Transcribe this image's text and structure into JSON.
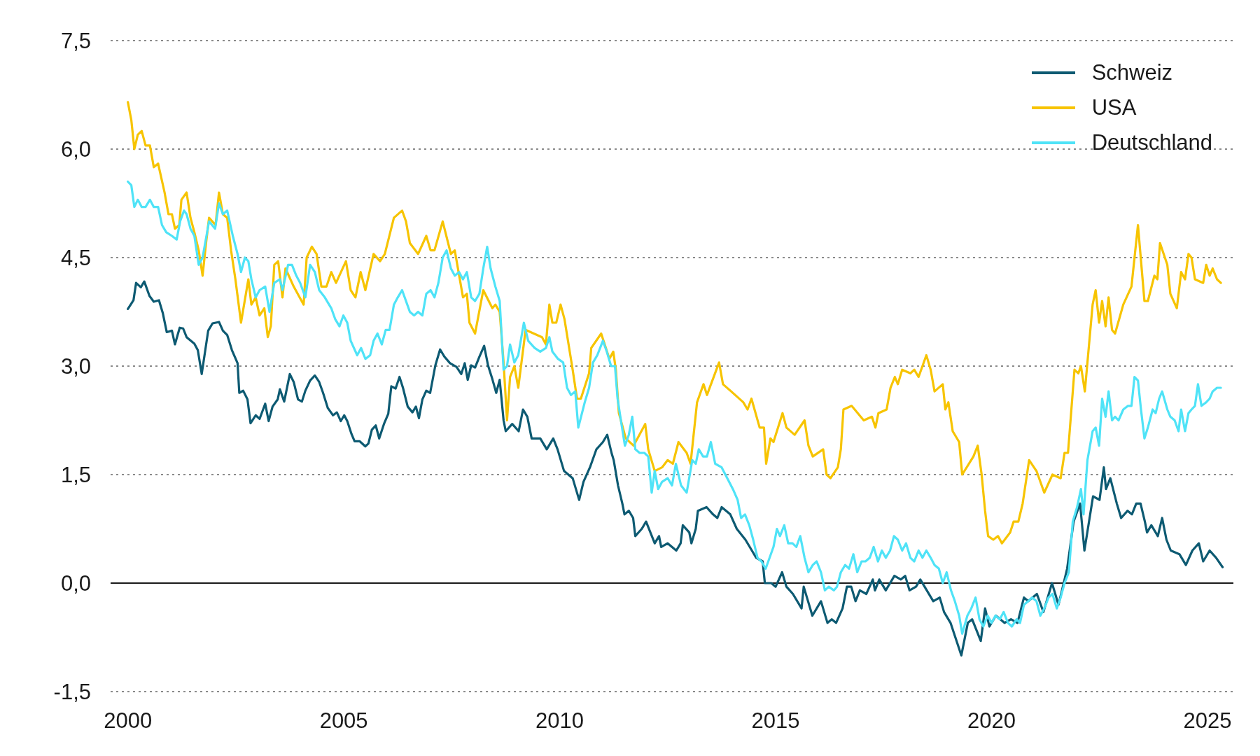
{
  "chart_data": {
    "type": "line",
    "xlim": [
      1999.6,
      2025.6
    ],
    "xticks": [
      2000,
      2005,
      2010,
      2015,
      2020,
      2025
    ],
    "ylim": [
      -1.5,
      7.5
    ],
    "yticks": [
      {
        "value": -1.5,
        "label": "-1,5"
      },
      {
        "value": 0,
        "label": "0,0"
      },
      {
        "value": 1.5,
        "label": "1,5"
      },
      {
        "value": 3,
        "label": "3,0"
      },
      {
        "value": 4.5,
        "label": "4,5"
      },
      {
        "value": 6,
        "label": "6,0"
      },
      {
        "value": 7.5,
        "label": "7,5"
      }
    ],
    "grid": "y",
    "legend": "top right",
    "ref_lines": [
      {
        "axis": "y",
        "value": 0,
        "color": "#1a1a1a"
      }
    ],
    "series": [
      {
        "name": "Schweiz",
        "color": "#0d5a72",
        "x": [
          2000.0,
          2000.13,
          2000.19,
          2000.3,
          2000.38,
          2000.5,
          2000.6,
          2000.72,
          2000.81,
          2000.9,
          2001.02,
          2001.09,
          2001.2,
          2001.28,
          2001.36,
          2001.54,
          2001.62,
          2001.71,
          2001.86,
          2001.96,
          2002.11,
          2002.2,
          2002.3,
          2002.41,
          2002.54,
          2002.58,
          2002.67,
          2002.77,
          2002.84,
          2002.96,
          2003.05,
          2003.18,
          2003.26,
          2003.35,
          2003.47,
          2003.52,
          2003.62,
          2003.75,
          2003.84,
          2003.94,
          2004.03,
          2004.11,
          2004.22,
          2004.33,
          2004.43,
          2004.52,
          2004.63,
          2004.75,
          2004.84,
          2004.93,
          2005.01,
          2005.08,
          2005.18,
          2005.25,
          2005.37,
          2005.5,
          2005.57,
          2005.65,
          2005.74,
          2005.82,
          2005.93,
          2006.03,
          2006.1,
          2006.2,
          2006.29,
          2006.37,
          2006.48,
          2006.59,
          2006.67,
          2006.74,
          2006.82,
          2006.91,
          2007.0,
          2007.12,
          2007.23,
          2007.33,
          2007.46,
          2007.61,
          2007.72,
          2007.8,
          2007.87,
          2007.95,
          2008.04,
          2008.14,
          2008.25,
          2008.34,
          2008.44,
          2008.53,
          2008.61,
          2008.7,
          2008.75,
          2008.9,
          2009.05,
          2009.15,
          2009.25,
          2009.35,
          2009.55,
          2009.7,
          2009.85,
          2009.95,
          2010.1,
          2010.3,
          2010.45,
          2010.55,
          2010.7,
          2010.85,
          2011.0,
          2011.1,
          2011.2,
          2011.25,
          2011.35,
          2011.45,
          2011.5,
          2011.6,
          2011.7,
          2011.75,
          2011.9,
          2012.0,
          2012.2,
          2012.3,
          2012.35,
          2012.5,
          2012.7,
          2012.8,
          2012.85,
          2013.0,
          2013.05,
          2013.15,
          2013.2,
          2013.4,
          2013.55,
          2013.65,
          2013.75,
          2013.95,
          2014.1,
          2014.3,
          2014.45,
          2014.55,
          2014.7,
          2014.75,
          2014.9,
          2015.0,
          2015.15,
          2015.25,
          2015.4,
          2015.6,
          2015.65,
          2015.85,
          2016.05,
          2016.2,
          2016.3,
          2016.4,
          2016.55,
          2016.65,
          2016.75,
          2016.85,
          2016.95,
          2017.1,
          2017.25,
          2017.3,
          2017.4,
          2017.55,
          2017.75,
          2017.9,
          2018.0,
          2018.1,
          2018.25,
          2018.35,
          2018.65,
          2018.8,
          2018.9,
          2019.05,
          2019.3,
          2019.45,
          2019.55,
          2019.75,
          2019.85,
          2019.95,
          2020.1,
          2020.3,
          2020.45,
          2020.6,
          2020.75,
          2020.85,
          2021.05,
          2021.2,
          2021.4,
          2021.55,
          2021.75,
          2021.9,
          2022.05,
          2022.15,
          2022.35,
          2022.5,
          2022.6,
          2022.65,
          2022.75,
          2022.9,
          2023.0,
          2023.15,
          2023.25,
          2023.35,
          2023.45,
          2023.55,
          2023.6,
          2023.7,
          2023.85,
          2023.95,
          2024.05,
          2024.15,
          2024.35,
          2024.5,
          2024.65,
          2024.8,
          2024.9,
          2025.05,
          2025.2,
          2025.35
        ],
        "values": [
          3.79,
          3.91,
          4.15,
          4.09,
          4.17,
          3.97,
          3.89,
          3.91,
          3.73,
          3.47,
          3.49,
          3.3,
          3.53,
          3.52,
          3.4,
          3.31,
          3.22,
          2.89,
          3.49,
          3.59,
          3.61,
          3.49,
          3.43,
          3.22,
          3.04,
          2.63,
          2.66,
          2.54,
          2.21,
          2.32,
          2.27,
          2.48,
          2.24,
          2.44,
          2.54,
          2.68,
          2.51,
          2.89,
          2.78,
          2.54,
          2.51,
          2.66,
          2.8,
          2.87,
          2.78,
          2.63,
          2.42,
          2.32,
          2.36,
          2.24,
          2.32,
          2.24,
          2.06,
          1.96,
          1.96,
          1.89,
          1.93,
          2.12,
          2.18,
          2.0,
          2.2,
          2.34,
          2.72,
          2.69,
          2.85,
          2.7,
          2.44,
          2.36,
          2.44,
          2.28,
          2.54,
          2.66,
          2.63,
          3.01,
          3.23,
          3.13,
          3.04,
          2.99,
          2.89,
          3.04,
          2.81,
          3.01,
          2.98,
          3.13,
          3.28,
          3.01,
          2.82,
          2.63,
          2.81,
          2.25,
          2.1,
          2.2,
          2.1,
          2.4,
          2.3,
          2.0,
          2.0,
          1.85,
          2.0,
          1.85,
          1.55,
          1.45,
          1.15,
          1.4,
          1.6,
          1.85,
          1.95,
          2.05,
          1.8,
          1.7,
          1.35,
          1.1,
          0.95,
          1.0,
          0.9,
          0.65,
          0.75,
          0.85,
          0.55,
          0.65,
          0.5,
          0.55,
          0.45,
          0.55,
          0.8,
          0.7,
          0.55,
          0.75,
          1.0,
          1.05,
          0.95,
          0.9,
          1.05,
          0.95,
          0.75,
          0.6,
          0.45,
          0.35,
          0.3,
          0.0,
          0.0,
          -0.05,
          0.15,
          -0.05,
          -0.15,
          -0.35,
          -0.05,
          -0.45,
          -0.25,
          -0.55,
          -0.5,
          -0.55,
          -0.35,
          -0.05,
          -0.05,
          -0.25,
          -0.1,
          -0.15,
          0.05,
          -0.1,
          0.05,
          -0.1,
          0.1,
          0.05,
          0.1,
          -0.1,
          -0.05,
          0.05,
          -0.25,
          -0.2,
          -0.4,
          -0.55,
          -1.0,
          -0.55,
          -0.5,
          -0.8,
          -0.35,
          -0.6,
          -0.45,
          -0.55,
          -0.5,
          -0.55,
          -0.2,
          -0.25,
          -0.15,
          -0.4,
          0.0,
          -0.3,
          0.2,
          0.85,
          1.1,
          0.45,
          1.2,
          1.15,
          1.6,
          1.3,
          1.45,
          1.1,
          0.9,
          1.0,
          0.95,
          1.1,
          1.1,
          0.85,
          0.7,
          0.8,
          0.65,
          0.9,
          0.6,
          0.45,
          0.4,
          0.25,
          0.45,
          0.55,
          0.3,
          0.45,
          0.35,
          0.22
        ]
      },
      {
        "name": "USA",
        "color": "#f7c400",
        "x": [
          2000.0,
          2000.08,
          2000.15,
          2000.23,
          2000.32,
          2000.41,
          2000.51,
          2000.6,
          2000.7,
          2000.85,
          2000.94,
          2001.02,
          2001.09,
          2001.19,
          2001.24,
          2001.36,
          2001.45,
          2001.54,
          2001.64,
          2001.73,
          2001.81,
          2001.88,
          2002.03,
          2002.11,
          2002.2,
          2002.3,
          2002.39,
          2002.49,
          2002.62,
          2002.79,
          2002.86,
          2002.96,
          2003.05,
          2003.16,
          2003.24,
          2003.31,
          2003.39,
          2003.48,
          2003.58,
          2003.65,
          2003.84,
          2004.07,
          2004.14,
          2004.26,
          2004.37,
          2004.48,
          2004.6,
          2004.71,
          2004.82,
          2005.05,
          2005.16,
          2005.27,
          2005.39,
          2005.5,
          2005.69,
          2005.84,
          2005.95,
          2006.16,
          2006.35,
          2006.44,
          2006.53,
          2006.72,
          2006.91,
          2007.01,
          2007.1,
          2007.29,
          2007.48,
          2007.57,
          2007.76,
          2007.85,
          2007.91,
          2008.04,
          2008.23,
          2008.44,
          2008.51,
          2008.61,
          2008.7,
          2008.78,
          2008.85,
          2008.95,
          2009.04,
          2009.21,
          2009.4,
          2009.59,
          2009.68,
          2009.76,
          2009.83,
          2009.92,
          2010.02,
          2010.11,
          2010.3,
          2010.4,
          2010.49,
          2010.68,
          2010.73,
          2010.96,
          2011.15,
          2011.24,
          2011.3,
          2011.37,
          2011.53,
          2011.71,
          2011.98,
          2012.05,
          2012.2,
          2012.37,
          2012.5,
          2012.62,
          2012.75,
          2012.94,
          2013.03,
          2013.18,
          2013.33,
          2013.41,
          2013.69,
          2013.78,
          2013.97,
          2014.25,
          2014.35,
          2014.44,
          2014.63,
          2014.73,
          2014.78,
          2014.88,
          2014.95,
          2015.16,
          2015.25,
          2015.44,
          2015.67,
          2015.76,
          2015.86,
          2016.1,
          2016.18,
          2016.27,
          2016.44,
          2016.51,
          2016.57,
          2016.76,
          2017.04,
          2017.23,
          2017.31,
          2017.38,
          2017.57,
          2017.66,
          2017.76,
          2017.83,
          2017.93,
          2018.12,
          2018.21,
          2018.31,
          2018.49,
          2018.59,
          2018.68,
          2018.87,
          2018.93,
          2019.0,
          2019.1,
          2019.25,
          2019.32,
          2019.58,
          2019.68,
          2019.77,
          2019.85,
          2019.92,
          2020.04,
          2020.15,
          2020.24,
          2020.43,
          2020.51,
          2020.62,
          2020.72,
          2020.87,
          2021.04,
          2021.22,
          2021.41,
          2021.6,
          2021.69,
          2021.77,
          2021.92,
          2022.01,
          2022.07,
          2022.16,
          2022.34,
          2022.41,
          2022.49,
          2022.56,
          2022.64,
          2022.71,
          2022.79,
          2022.86,
          2023.05,
          2023.24,
          2023.39,
          2023.54,
          2023.62,
          2023.77,
          2023.84,
          2023.9,
          2024.07,
          2024.14,
          2024.29,
          2024.39,
          2024.48,
          2024.56,
          2024.63,
          2024.71,
          2024.9,
          2024.97,
          2025.05,
          2025.12,
          2025.22,
          2025.31
        ],
        "values": [
          6.65,
          6.4,
          6.0,
          6.2,
          6.25,
          6.05,
          6.05,
          5.75,
          5.8,
          5.4,
          5.1,
          5.1,
          4.9,
          4.95,
          5.3,
          5.4,
          5.05,
          4.85,
          4.6,
          4.25,
          4.7,
          5.05,
          4.95,
          5.4,
          5.1,
          5.05,
          4.6,
          4.2,
          3.6,
          4.2,
          3.85,
          3.95,
          3.7,
          3.8,
          3.4,
          3.55,
          4.4,
          4.45,
          3.95,
          4.35,
          4.1,
          3.85,
          4.5,
          4.65,
          4.55,
          4.1,
          4.1,
          4.3,
          4.15,
          4.45,
          4.05,
          3.95,
          4.3,
          4.05,
          4.55,
          4.45,
          4.55,
          5.05,
          5.15,
          5.0,
          4.7,
          4.55,
          4.8,
          4.6,
          4.6,
          5.0,
          4.55,
          4.6,
          3.95,
          4.0,
          3.6,
          3.45,
          4.05,
          3.8,
          3.85,
          3.75,
          3.05,
          2.25,
          2.85,
          3.0,
          2.7,
          3.5,
          3.45,
          3.4,
          3.3,
          3.85,
          3.6,
          3.6,
          3.85,
          3.65,
          2.95,
          2.55,
          2.55,
          2.9,
          3.25,
          3.45,
          3.1,
          3.2,
          2.95,
          2.35,
          2.0,
          1.9,
          2.2,
          1.85,
          1.55,
          1.6,
          1.7,
          1.65,
          1.95,
          1.8,
          1.65,
          2.5,
          2.75,
          2.6,
          3.05,
          2.75,
          2.65,
          2.5,
          2.4,
          2.55,
          2.15,
          2.15,
          1.65,
          2.0,
          1.95,
          2.35,
          2.15,
          2.05,
          2.25,
          1.9,
          1.75,
          1.85,
          1.5,
          1.45,
          1.6,
          1.85,
          2.4,
          2.45,
          2.25,
          2.3,
          2.15,
          2.35,
          2.4,
          2.7,
          2.85,
          2.75,
          2.95,
          2.9,
          2.95,
          2.85,
          3.15,
          2.95,
          2.65,
          2.75,
          2.4,
          2.5,
          2.1,
          1.95,
          1.5,
          1.75,
          1.9,
          1.5,
          1.0,
          0.65,
          0.6,
          0.65,
          0.55,
          0.7,
          0.85,
          0.85,
          1.1,
          1.7,
          1.55,
          1.25,
          1.5,
          1.45,
          1.8,
          1.8,
          2.95,
          2.9,
          3.0,
          2.65,
          3.85,
          4.05,
          3.6,
          3.9,
          3.55,
          3.95,
          3.5,
          3.45,
          3.85,
          4.1,
          4.95,
          3.9,
          3.9,
          4.25,
          4.2,
          4.7,
          4.4,
          4.0,
          3.8,
          4.3,
          4.2,
          4.55,
          4.5,
          4.2,
          4.15,
          4.4,
          4.25,
          4.35,
          4.2,
          4.15
        ]
      },
      {
        "name": "Deutschland",
        "color": "#4fe3f7",
        "x": [
          2000.0,
          2000.08,
          2000.15,
          2000.23,
          2000.32,
          2000.41,
          2000.51,
          2000.6,
          2000.7,
          2000.79,
          2000.89,
          2001.02,
          2001.13,
          2001.21,
          2001.3,
          2001.36,
          2001.45,
          2001.54,
          2001.64,
          2001.73,
          2001.88,
          2002.02,
          2002.11,
          2002.2,
          2002.3,
          2002.43,
          2002.54,
          2002.62,
          2002.71,
          2002.79,
          2002.86,
          2002.96,
          2003.05,
          2003.18,
          2003.28,
          2003.39,
          2003.52,
          2003.58,
          2003.71,
          2003.8,
          2003.9,
          2003.99,
          2004.11,
          2004.22,
          2004.33,
          2004.43,
          2004.56,
          2004.71,
          2004.8,
          2004.9,
          2004.99,
          2005.08,
          2005.16,
          2005.31,
          2005.4,
          2005.5,
          2005.61,
          2005.69,
          2005.78,
          2005.88,
          2005.97,
          2006.06,
          2006.16,
          2006.25,
          2006.35,
          2006.44,
          2006.53,
          2006.63,
          2006.72,
          2006.82,
          2006.91,
          2007.01,
          2007.1,
          2007.19,
          2007.29,
          2007.38,
          2007.48,
          2007.57,
          2007.67,
          2007.76,
          2007.85,
          2007.95,
          2008.04,
          2008.14,
          2008.23,
          2008.32,
          2008.4,
          2008.51,
          2008.61,
          2008.7,
          2008.78,
          2008.85,
          2008.95,
          2009.04,
          2009.17,
          2009.27,
          2009.42,
          2009.55,
          2009.68,
          2009.76,
          2009.83,
          2009.96,
          2010.08,
          2010.17,
          2010.26,
          2010.36,
          2010.43,
          2010.58,
          2010.68,
          2010.77,
          2010.87,
          2011.0,
          2011.09,
          2011.19,
          2011.28,
          2011.34,
          2011.43,
          2011.51,
          2011.6,
          2011.68,
          2011.75,
          2011.85,
          2011.96,
          2012.05,
          2012.13,
          2012.2,
          2012.28,
          2012.37,
          2012.5,
          2012.6,
          2012.69,
          2012.81,
          2012.94,
          2013.07,
          2013.15,
          2013.22,
          2013.32,
          2013.41,
          2013.5,
          2013.6,
          2013.75,
          2013.88,
          2014.01,
          2014.12,
          2014.2,
          2014.29,
          2014.39,
          2014.48,
          2014.58,
          2014.67,
          2014.77,
          2014.86,
          2014.95,
          2015.03,
          2015.1,
          2015.2,
          2015.29,
          2015.39,
          2015.48,
          2015.57,
          2015.67,
          2015.76,
          2015.86,
          2015.95,
          2016.05,
          2016.14,
          2016.23,
          2016.35,
          2016.42,
          2016.51,
          2016.61,
          2016.7,
          2016.8,
          2016.89,
          2016.99,
          2017.08,
          2017.18,
          2017.27,
          2017.37,
          2017.46,
          2017.55,
          2017.65,
          2017.74,
          2017.83,
          2017.93,
          2018.02,
          2018.12,
          2018.21,
          2018.31,
          2018.4,
          2018.49,
          2018.59,
          2018.68,
          2018.78,
          2018.87,
          2018.96,
          2019.06,
          2019.15,
          2019.25,
          2019.32,
          2019.44,
          2019.53,
          2019.63,
          2019.72,
          2019.81,
          2019.91,
          2020.0,
          2020.09,
          2020.19,
          2020.28,
          2020.38,
          2020.47,
          2020.58,
          2020.66,
          2020.75,
          2020.85,
          2020.94,
          2021.04,
          2021.13,
          2021.22,
          2021.32,
          2021.41,
          2021.51,
          2021.6,
          2021.69,
          2021.79,
          2021.88,
          2021.98,
          2022.07,
          2022.13,
          2022.22,
          2022.34,
          2022.41,
          2022.49,
          2022.56,
          2022.64,
          2022.71,
          2022.79,
          2022.86,
          2022.94,
          2023.05,
          2023.16,
          2023.24,
          2023.31,
          2023.39,
          2023.46,
          2023.54,
          2023.62,
          2023.73,
          2023.8,
          2023.88,
          2023.95,
          2024.07,
          2024.14,
          2024.24,
          2024.33,
          2024.39,
          2024.48,
          2024.56,
          2024.63,
          2024.71,
          2024.78,
          2024.86,
          2024.97,
          2025.05,
          2025.12,
          2025.22,
          2025.31
        ],
        "values": [
          5.55,
          5.5,
          5.2,
          5.3,
          5.2,
          5.2,
          5.3,
          5.2,
          5.2,
          4.95,
          4.85,
          4.8,
          4.75,
          5.0,
          5.15,
          5.1,
          4.9,
          4.8,
          4.4,
          4.5,
          5.0,
          4.9,
          5.25,
          5.1,
          5.15,
          4.8,
          4.55,
          4.3,
          4.5,
          4.45,
          4.2,
          3.95,
          4.05,
          4.1,
          3.75,
          4.15,
          4.2,
          4.05,
          4.4,
          4.4,
          4.25,
          4.15,
          3.95,
          4.4,
          4.3,
          4.05,
          3.95,
          3.8,
          3.65,
          3.55,
          3.7,
          3.6,
          3.35,
          3.15,
          3.25,
          3.1,
          3.15,
          3.35,
          3.45,
          3.3,
          3.5,
          3.5,
          3.85,
          3.95,
          4.05,
          3.9,
          3.75,
          3.7,
          3.75,
          3.7,
          4.0,
          4.05,
          3.95,
          4.15,
          4.5,
          4.6,
          4.35,
          4.25,
          4.3,
          4.2,
          4.3,
          3.95,
          3.9,
          4.0,
          4.35,
          4.65,
          4.35,
          4.1,
          3.9,
          2.95,
          3.0,
          3.3,
          3.05,
          3.15,
          3.6,
          3.35,
          3.25,
          3.2,
          3.25,
          3.4,
          3.2,
          3.1,
          3.05,
          2.7,
          2.6,
          2.65,
          2.15,
          2.5,
          2.7,
          3.05,
          3.15,
          3.35,
          3.2,
          3.0,
          3.0,
          2.55,
          2.2,
          1.9,
          2.05,
          2.3,
          1.85,
          1.8,
          1.8,
          1.75,
          1.25,
          1.55,
          1.3,
          1.4,
          1.45,
          1.35,
          1.65,
          1.35,
          1.25,
          1.7,
          1.65,
          1.85,
          1.75,
          1.75,
          1.95,
          1.65,
          1.6,
          1.45,
          1.3,
          1.15,
          0.9,
          0.95,
          0.8,
          0.6,
          0.35,
          0.3,
          0.2,
          0.35,
          0.5,
          0.75,
          0.65,
          0.8,
          0.55,
          0.55,
          0.5,
          0.65,
          0.35,
          0.15,
          0.25,
          0.3,
          0.15,
          -0.1,
          -0.05,
          -0.1,
          -0.05,
          0.15,
          0.25,
          0.2,
          0.4,
          0.15,
          0.3,
          0.3,
          0.35,
          0.5,
          0.3,
          0.45,
          0.35,
          0.45,
          0.65,
          0.6,
          0.45,
          0.55,
          0.35,
          0.3,
          0.45,
          0.35,
          0.45,
          0.35,
          0.25,
          0.2,
          0.0,
          0.15,
          -0.1,
          -0.25,
          -0.45,
          -0.7,
          -0.45,
          -0.35,
          -0.2,
          -0.5,
          -0.6,
          -0.45,
          -0.55,
          -0.45,
          -0.5,
          -0.4,
          -0.55,
          -0.6,
          -0.5,
          -0.55,
          -0.3,
          -0.25,
          -0.2,
          -0.25,
          -0.45,
          -0.35,
          -0.2,
          -0.15,
          -0.35,
          -0.2,
          0.0,
          0.15,
          0.85,
          1.05,
          1.3,
          0.95,
          1.7,
          2.1,
          2.15,
          1.9,
          2.55,
          2.3,
          2.65,
          2.25,
          2.3,
          2.25,
          2.4,
          2.45,
          2.45,
          2.85,
          2.8,
          2.4,
          2.0,
          2.15,
          2.4,
          2.35,
          2.55,
          2.65,
          2.4,
          2.3,
          2.25,
          2.1,
          2.4,
          2.1,
          2.35,
          2.4,
          2.45,
          2.75,
          2.45,
          2.5,
          2.55,
          2.65,
          2.7,
          2.7
        ]
      }
    ]
  }
}
